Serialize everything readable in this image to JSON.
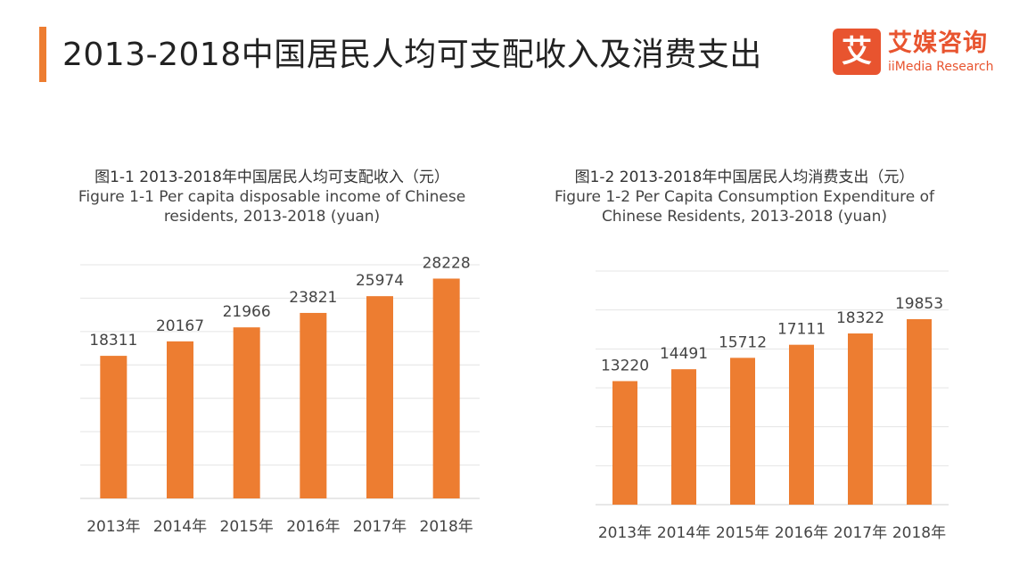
{
  "page": {
    "title": "2013-2018中国居民人均可支配收入及消费支出",
    "accent_color": "#ED7D31"
  },
  "logo": {
    "glyph": "艾",
    "name_cn": "艾媒咨询",
    "name_en": "iiMedia Research",
    "color": "#E8542F"
  },
  "chart_data": [
    {
      "type": "bar",
      "title_cn": "图1-1 2013-2018年中国居民人均可支配收入（元）",
      "title_en": "Figure 1-1 Per capita disposable income of Chinese residents, 2013-2018 (yuan)",
      "categories": [
        "2013年",
        "2014年",
        "2015年",
        "2016年",
        "2017年",
        "2018年"
      ],
      "values": [
        18311,
        20167,
        21966,
        23821,
        25974,
        28228
      ],
      "ylim": [
        0,
        30000
      ],
      "gridlines": 7,
      "bar_color": "#ED7D31"
    },
    {
      "type": "bar",
      "title_cn": "图1-2 2013-2018年中国居民人均消费支出（元）",
      "title_en": "Figure 1-2 Per Capita Consumption Expenditure of Chinese Residents, 2013-2018 (yuan)",
      "categories": [
        "2013年",
        "2014年",
        "2015年",
        "2016年",
        "2017年",
        "2018年"
      ],
      "values": [
        13220,
        14491,
        15712,
        17111,
        18322,
        19853
      ],
      "ylim": [
        0,
        25000
      ],
      "gridlines": 6,
      "bar_color": "#ED7D31"
    }
  ]
}
